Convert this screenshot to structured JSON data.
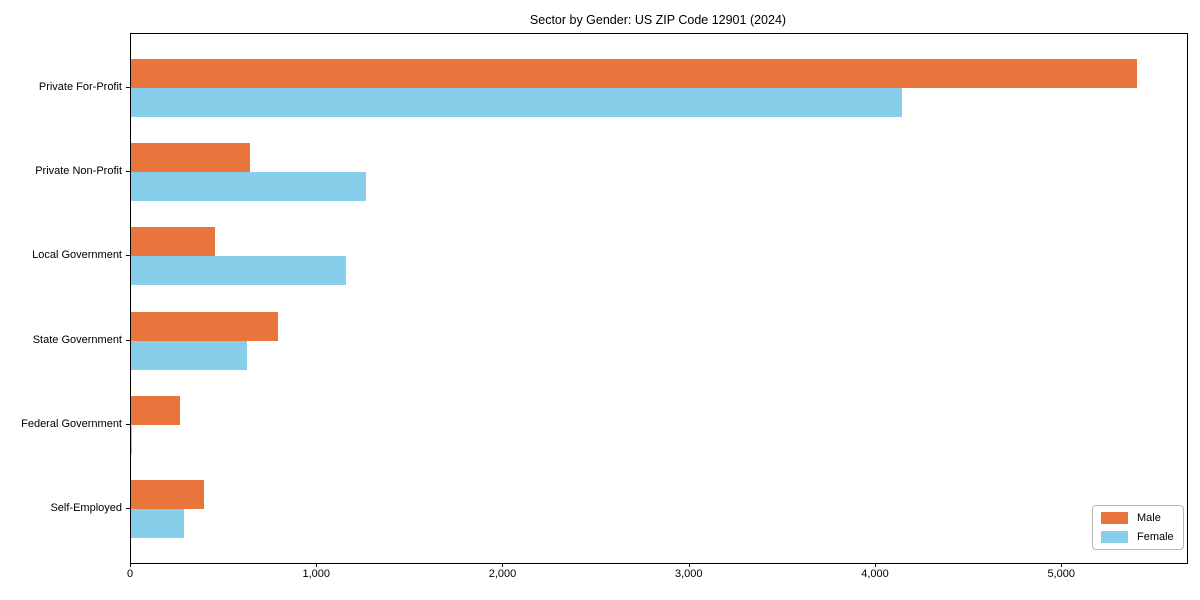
{
  "chart_data": {
    "type": "bar",
    "orientation": "horizontal",
    "title": "Sector by Gender: US ZIP Code 12901 (2024)",
    "categories": [
      "Private For-Profit",
      "Private Non-Profit",
      "Local Government",
      "State Government",
      "Federal Government",
      "Self-Employed"
    ],
    "series": [
      {
        "name": "Male",
        "color": "#e8763c",
        "values": [
          5400,
          640,
          450,
          790,
          265,
          390
        ]
      },
      {
        "name": "Female",
        "color": "#87ceeb",
        "values": [
          4140,
          1260,
          1155,
          625,
          4,
          287
        ]
      }
    ],
    "xlabel": "",
    "ylabel": "",
    "xlim": [
      0,
      5670
    ],
    "xticks": [
      0,
      1000,
      2000,
      3000,
      4000,
      5000
    ],
    "xtick_labels": [
      "0",
      "1,000",
      "2,000",
      "3,000",
      "4,000",
      "5,000"
    ],
    "legend_position": "lower right",
    "grid": false,
    "bar_order_note": "Male bar drawn above Female bar within each category group"
  }
}
